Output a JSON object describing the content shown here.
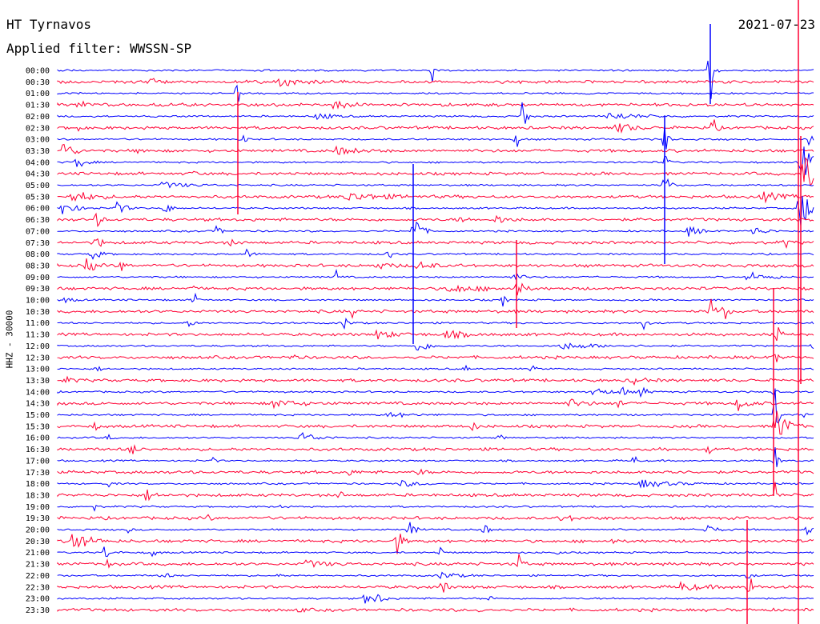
{
  "header": {
    "station": "HT Tyrnavos",
    "filter": "Applied filter: WWSSN-SP",
    "date": "2021-07-23"
  },
  "chart_data": {
    "type": "line",
    "ylabel": "HHZ - 30000",
    "colors": {
      "odd": "#0000ff",
      "even": "#ff0033"
    },
    "rows": [
      {
        "label": "00:00",
        "events": [
          [
            540,
            18,
            2
          ],
          [
            887,
            56,
            3
          ]
        ]
      },
      {
        "label": "00:30",
        "events": [
          [
            185,
            5,
            18
          ],
          [
            345,
            5,
            25
          ]
        ]
      },
      {
        "label": "01:00",
        "events": [
          [
            297,
            30,
            1
          ]
        ]
      },
      {
        "label": "01:30",
        "events": [
          [
            95,
            5,
            12
          ],
          [
            415,
            5,
            20
          ]
        ]
      },
      {
        "label": "02:00",
        "events": [
          [
            650,
            40,
            4
          ],
          [
            395,
            5,
            15
          ],
          [
            760,
            5,
            30
          ]
        ]
      },
      {
        "label": "02:30",
        "events": [
          [
            95,
            9,
            3
          ],
          [
            890,
            20,
            3
          ],
          [
            770,
            7,
            15
          ]
        ]
      },
      {
        "label": "03:00",
        "events": [
          [
            303,
            20,
            2
          ],
          [
            645,
            15,
            2
          ],
          [
            830,
            28,
            3
          ],
          [
            1010,
            8,
            8
          ]
        ]
      },
      {
        "label": "03:30",
        "events": [
          [
            78,
            12,
            10
          ],
          [
            175,
            6,
            5
          ],
          [
            420,
            5,
            20
          ]
        ]
      },
      {
        "label": "04:00",
        "events": [
          [
            95,
            10,
            8
          ],
          [
            830,
            12,
            3
          ],
          [
            1000,
            30,
            10
          ]
        ]
      },
      {
        "label": "04:30",
        "events": [
          [
            243,
            10,
            2
          ],
          [
            1005,
            40,
            12
          ]
        ]
      },
      {
        "label": "05:00",
        "events": [
          [
            830,
            28,
            4
          ],
          [
            200,
            4,
            30
          ]
        ]
      },
      {
        "label": "05:30",
        "events": [
          [
            90,
            8,
            20
          ],
          [
            430,
            5,
            40
          ],
          [
            950,
            6,
            20
          ]
        ]
      },
      {
        "label": "06:00",
        "events": [
          [
            78,
            10,
            12
          ],
          [
            145,
            8,
            10
          ],
          [
            207,
            12,
            4
          ],
          [
            998,
            28,
            15
          ]
        ]
      },
      {
        "label": "06:30",
        "events": [
          [
            120,
            10,
            5
          ],
          [
            575,
            10,
            3
          ],
          [
            620,
            5,
            12
          ]
        ]
      },
      {
        "label": "07:00",
        "events": [
          [
            517,
            28,
            6
          ],
          [
            270,
            6,
            6
          ],
          [
            860,
            8,
            10
          ],
          [
            940,
            6,
            12
          ]
        ]
      },
      {
        "label": "07:30",
        "events": [
          [
            120,
            14,
            4
          ],
          [
            285,
            6,
            5
          ],
          [
            980,
            10,
            3
          ]
        ]
      },
      {
        "label": "08:00",
        "events": [
          [
            115,
            8,
            8
          ],
          [
            485,
            7,
            4
          ],
          [
            308,
            6,
            5
          ]
        ]
      },
      {
        "label": "08:30",
        "events": [
          [
            108,
            12,
            7
          ],
          [
            150,
            11,
            4
          ],
          [
            520,
            6,
            15
          ],
          [
            470,
            4,
            15
          ]
        ]
      },
      {
        "label": "09:00",
        "events": [
          [
            420,
            8,
            3
          ],
          [
            640,
            5,
            10
          ],
          [
            935,
            8,
            10
          ],
          [
            965,
            7,
            4
          ]
        ]
      },
      {
        "label": "09:30",
        "events": [
          [
            240,
            7,
            2
          ],
          [
            645,
            18,
            5
          ],
          [
            560,
            5,
            30
          ]
        ]
      },
      {
        "label": "10:00",
        "events": [
          [
            243,
            10,
            3
          ],
          [
            628,
            8,
            3
          ],
          [
            80,
            3,
            10
          ]
        ]
      },
      {
        "label": "10:30",
        "events": [
          [
            888,
            22,
            4
          ],
          [
            905,
            14,
            3
          ],
          [
            440,
            6,
            3
          ]
        ]
      },
      {
        "label": "11:00",
        "events": [
          [
            430,
            10,
            4
          ],
          [
            803,
            10,
            4
          ],
          [
            235,
            6,
            5
          ]
        ]
      },
      {
        "label": "11:30",
        "events": [
          [
            470,
            5,
            20
          ],
          [
            970,
            15,
            3
          ],
          [
            555,
            5,
            20
          ]
        ]
      },
      {
        "label": "12:00",
        "events": [
          [
            520,
            7,
            15
          ],
          [
            700,
            4,
            40
          ],
          [
            1015,
            7,
            3
          ]
        ]
      },
      {
        "label": "12:30",
        "events": [
          [
            365,
            6,
            4
          ],
          [
            968,
            12,
            3
          ]
        ]
      },
      {
        "label": "13:00",
        "events": [
          [
            580,
            6,
            3
          ],
          [
            665,
            5,
            3
          ],
          [
            120,
            4,
            5
          ]
        ]
      },
      {
        "label": "13:30",
        "events": [
          [
            790,
            6,
            10
          ],
          [
            80,
            4,
            8
          ]
        ]
      },
      {
        "label": "14:00",
        "events": [
          [
            775,
            12,
            4
          ],
          [
            800,
            8,
            6
          ],
          [
            740,
            6,
            15
          ],
          [
            965,
            6,
            3
          ]
        ]
      },
      {
        "label": "14:30",
        "events": [
          [
            920,
            10,
            10
          ],
          [
            340,
            5,
            25
          ],
          [
            775,
            14,
            2
          ],
          [
            710,
            5,
            15
          ]
        ]
      },
      {
        "label": "15:00",
        "events": [
          [
            968,
            40,
            3
          ],
          [
            485,
            4,
            20
          ],
          [
            1000,
            5,
            5
          ]
        ]
      },
      {
        "label": "15:30",
        "events": [
          [
            968,
            30,
            10
          ],
          [
            590,
            6,
            4
          ],
          [
            118,
            4,
            5
          ]
        ]
      },
      {
        "label": "16:00",
        "events": [
          [
            375,
            8,
            15
          ],
          [
            135,
            5,
            3
          ],
          [
            625,
            5,
            3
          ]
        ]
      },
      {
        "label": "16:30",
        "events": [
          [
            162,
            12,
            5
          ],
          [
            885,
            8,
            2
          ],
          [
            825,
            5,
            3
          ]
        ]
      },
      {
        "label": "17:00",
        "events": [
          [
            793,
            10,
            2
          ],
          [
            265,
            5,
            3
          ],
          [
            968,
            20,
            3
          ]
        ]
      },
      {
        "label": "17:30",
        "events": [
          [
            430,
            6,
            8
          ],
          [
            525,
            7,
            3
          ],
          [
            830,
            5,
            8
          ]
        ]
      },
      {
        "label": "18:00",
        "events": [
          [
            800,
            5,
            30
          ],
          [
            135,
            4,
            5
          ],
          [
            500,
            4,
            20
          ]
        ]
      },
      {
        "label": "18:30",
        "events": [
          [
            182,
            8,
            8
          ],
          [
            425,
            5,
            3
          ],
          [
            968,
            18,
            2
          ]
        ]
      },
      {
        "label": "19:00",
        "events": [
          [
            118,
            5,
            2
          ],
          [
            350,
            4,
            3
          ]
        ]
      },
      {
        "label": "19:30",
        "events": [
          [
            260,
            4,
            3
          ],
          [
            700,
            3,
            20
          ]
        ]
      },
      {
        "label": "20:00",
        "events": [
          [
            510,
            12,
            6
          ],
          [
            605,
            10,
            4
          ],
          [
            880,
            8,
            10
          ],
          [
            1008,
            10,
            3
          ],
          [
            160,
            4,
            3
          ]
        ]
      },
      {
        "label": "20:30",
        "events": [
          [
            90,
            15,
            15
          ],
          [
            494,
            25,
            5
          ],
          [
            765,
            5,
            3
          ]
        ]
      },
      {
        "label": "21:00",
        "events": [
          [
            130,
            8,
            8
          ],
          [
            550,
            8,
            3
          ],
          [
            190,
            5,
            5
          ],
          [
            695,
            5,
            3
          ]
        ]
      },
      {
        "label": "21:30",
        "events": [
          [
            136,
            14,
            3
          ],
          [
            648,
            14,
            3
          ],
          [
            380,
            5,
            20
          ]
        ]
      },
      {
        "label": "22:00",
        "events": [
          [
            550,
            5,
            15
          ],
          [
            935,
            8,
            3
          ],
          [
            345,
            4,
            3
          ],
          [
            200,
            4,
            10
          ]
        ]
      },
      {
        "label": "22:30",
        "events": [
          [
            553,
            16,
            3
          ],
          [
            935,
            22,
            4
          ],
          [
            850,
            5,
            20
          ]
        ]
      },
      {
        "label": "23:00",
        "events": [
          [
            455,
            9,
            10
          ],
          [
            612,
            7,
            2
          ],
          [
            470,
            5,
            8
          ]
        ]
      },
      {
        "label": "23:30",
        "events": [
          [
            375,
            5,
            3
          ],
          [
            600,
            4,
            3
          ]
        ]
      }
    ],
    "spikes": [
      {
        "x": 997,
        "from": 0,
        "to": 780,
        "color": "#ff0033"
      },
      {
        "x": 1000,
        "from": 170,
        "to": 480,
        "color": "#ff0033"
      },
      {
        "x": 516,
        "from": 205,
        "to": 430,
        "color": "#0000ff"
      },
      {
        "x": 297,
        "from": 115,
        "to": 268,
        "color": "#ff0033"
      },
      {
        "x": 645,
        "from": 300,
        "to": 410,
        "color": "#ff0033"
      },
      {
        "x": 830,
        "from": 145,
        "to": 330,
        "color": "#0000ff"
      },
      {
        "x": 933,
        "from": 650,
        "to": 780,
        "color": "#ff0033"
      },
      {
        "x": 966,
        "from": 360,
        "to": 620,
        "color": "#ff0033"
      },
      {
        "x": 887,
        "from": 30,
        "to": 130,
        "color": "#0000ff"
      }
    ]
  }
}
